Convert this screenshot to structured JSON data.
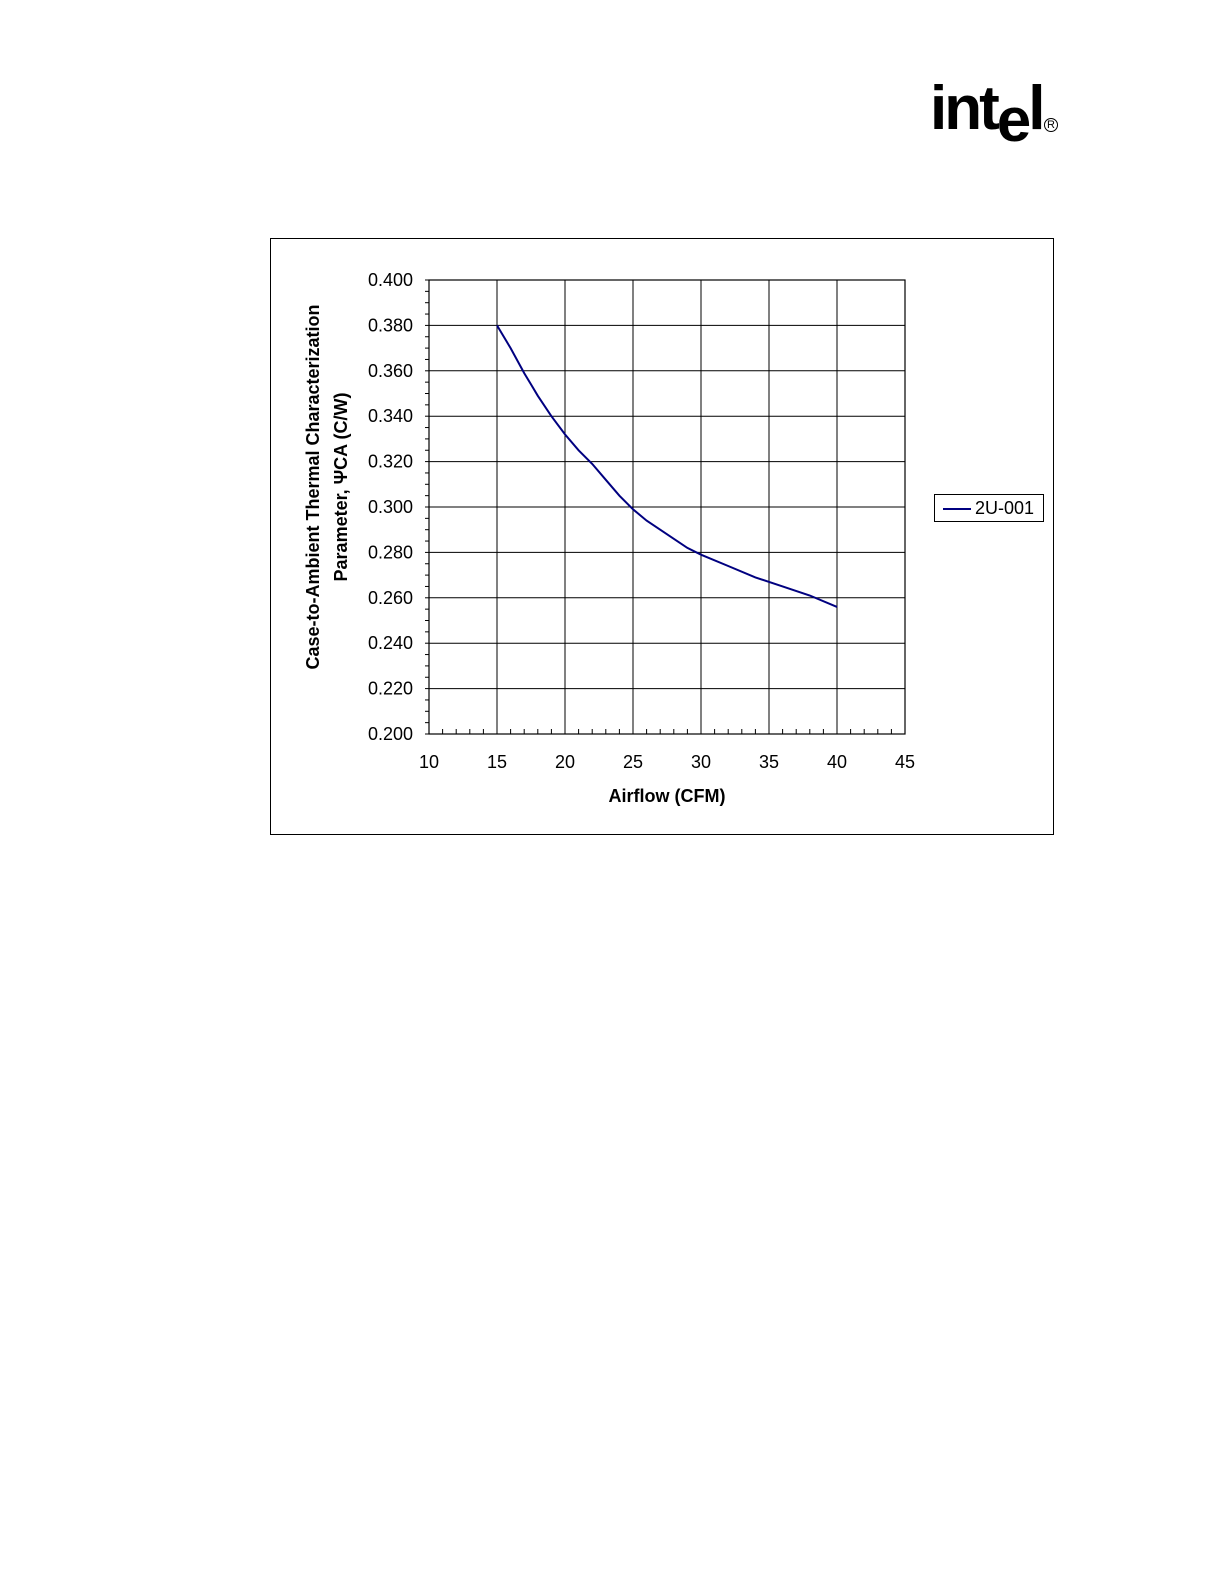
{
  "logo": {
    "text": "intel",
    "registered": "R"
  },
  "chart_data": {
    "type": "line",
    "xlabel": "Airflow (CFM)",
    "ylabel_line1": "Case-to-Ambient Thermal Characterization",
    "ylabel_line2": "Parameter, ΨCA (C/W)",
    "xlim": [
      10,
      45
    ],
    "ylim": [
      0.2,
      0.4
    ],
    "x_ticks": [
      "10",
      "15",
      "20",
      "25",
      "30",
      "35",
      "40",
      "45"
    ],
    "y_ticks": [
      "0.200",
      "0.220",
      "0.240",
      "0.260",
      "0.280",
      "0.300",
      "0.320",
      "0.340",
      "0.360",
      "0.380",
      "0.400"
    ],
    "grid": true,
    "legend_position": "right",
    "series": [
      {
        "name": "2U-001",
        "color": "#000080",
        "x": [
          15,
          16,
          17,
          17.5,
          18,
          19,
          20,
          21,
          22,
          23,
          24,
          25,
          26,
          27,
          28,
          29,
          30,
          32,
          34,
          36,
          38,
          40
        ],
        "y": [
          0.38,
          0.37,
          0.359,
          0.354,
          0.349,
          0.34,
          0.332,
          0.325,
          0.319,
          0.312,
          0.305,
          0.299,
          0.294,
          0.29,
          0.286,
          0.282,
          0.279,
          0.274,
          0.269,
          0.265,
          0.261,
          0.256
        ]
      }
    ]
  }
}
